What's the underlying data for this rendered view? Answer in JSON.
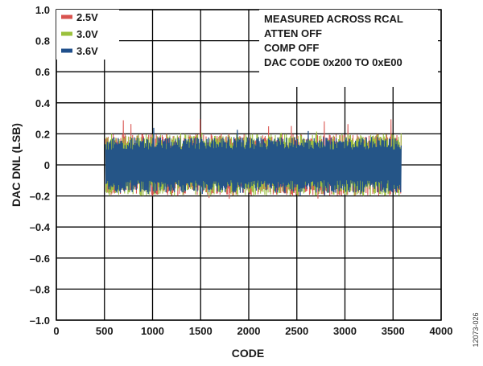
{
  "chart_data": {
    "type": "line",
    "title": "",
    "xlabel": "CODE",
    "ylabel": "DAC DNL (LSB)",
    "xlim": [
      0,
      4000
    ],
    "ylim": [
      -1.0,
      1.0
    ],
    "x_ticks": [
      0,
      500,
      1000,
      1500,
      2000,
      2500,
      3000,
      3500,
      4000
    ],
    "y_ticks": [
      1.0,
      0.8,
      0.6,
      0.4,
      0.2,
      0,
      -0.2,
      -0.4,
      -0.6,
      -0.8,
      -1.0
    ],
    "x_tick_labels": [
      "0",
      "500",
      "1000",
      "1500",
      "2000",
      "2500",
      "3000",
      "3500",
      "4000"
    ],
    "y_tick_labels": [
      "1.0",
      "0.8",
      "0.6",
      "0.4",
      "0.2",
      "0",
      "–0.2",
      "–0.4",
      "–0.6",
      "–0.8",
      "–1.0"
    ],
    "grid": true,
    "legend_position": "top-left",
    "series": [
      {
        "name": "2.5V",
        "color": "#d9534f",
        "x_range": [
          512,
          3584
        ],
        "band": [
          -0.2,
          0.2
        ],
        "min": -0.22,
        "max": 0.31
      },
      {
        "name": "3.0V",
        "color": "#9bc13c",
        "x_range": [
          512,
          3584
        ],
        "band": [
          -0.2,
          0.2
        ],
        "min": -0.21,
        "max": 0.22
      },
      {
        "name": "3.6V",
        "color": "#1f4f8b",
        "x_range": [
          512,
          3584
        ],
        "band": [
          -0.18,
          0.18
        ],
        "min": -0.2,
        "max": 0.25
      }
    ],
    "annotations": [
      "MEASURED ACROSS RCAL",
      "ATTEN OFF",
      "COMP OFF",
      "DAC CODE 0x200 TO 0xE00"
    ]
  },
  "figure_id": "12073-026"
}
